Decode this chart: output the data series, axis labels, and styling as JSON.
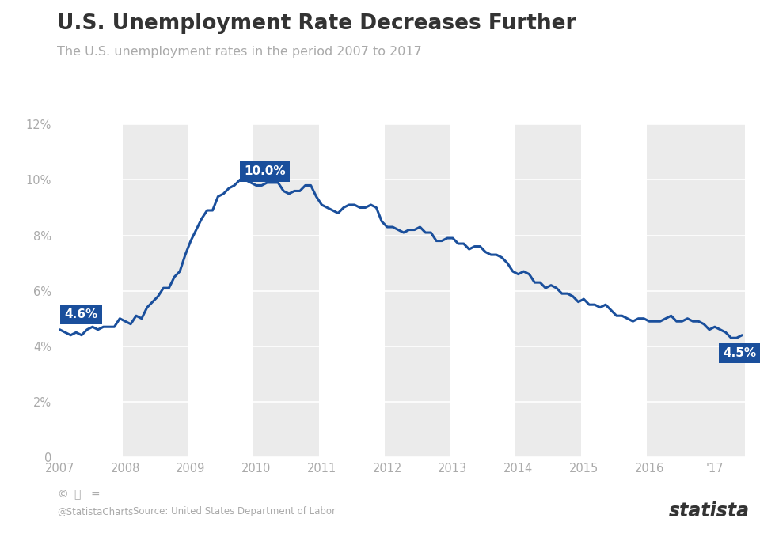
{
  "title": "U.S. Unemployment Rate Decreases Further",
  "subtitle": "The U.S. unemployment rates in the period 2007 to 2017",
  "source": "Source: United States Department of Labor",
  "credit": "@StatistaCharts",
  "background_color": "#ffffff",
  "plot_bg_color": "#ffffff",
  "line_color": "#1a4f9c",
  "line_width": 2.2,
  "title_color": "#333333",
  "subtitle_color": "#aaaaaa",
  "annotation_bg": "#1a4f9c",
  "annotation_text_color": "#ffffff",
  "tick_color": "#aaaaaa",
  "ylim": [
    0,
    12
  ],
  "yticks": [
    0,
    2,
    4,
    6,
    8,
    10,
    12
  ],
  "ytick_labels": [
    "0",
    "2%",
    "4%",
    "6%",
    "8%",
    "10%",
    "12%"
  ],
  "stripe_color": "#ebebeb",
  "data": [
    4.6,
    4.5,
    4.4,
    4.5,
    4.4,
    4.6,
    4.7,
    4.6,
    4.7,
    4.7,
    4.7,
    5.0,
    4.9,
    4.8,
    5.1,
    5.0,
    5.4,
    5.6,
    5.8,
    6.1,
    6.1,
    6.5,
    6.7,
    7.3,
    7.8,
    8.2,
    8.6,
    8.9,
    8.9,
    9.4,
    9.5,
    9.7,
    9.8,
    10.0,
    10.0,
    9.9,
    9.8,
    9.8,
    9.9,
    9.9,
    9.9,
    9.6,
    9.5,
    9.6,
    9.6,
    9.8,
    9.8,
    9.4,
    9.1,
    9.0,
    8.9,
    8.8,
    9.0,
    9.1,
    9.1,
    9.0,
    9.0,
    9.1,
    9.0,
    8.5,
    8.3,
    8.3,
    8.2,
    8.1,
    8.2,
    8.2,
    8.3,
    8.1,
    8.1,
    7.8,
    7.8,
    7.9,
    7.9,
    7.7,
    7.7,
    7.5,
    7.6,
    7.6,
    7.4,
    7.3,
    7.3,
    7.2,
    7.0,
    6.7,
    6.6,
    6.7,
    6.6,
    6.3,
    6.3,
    6.1,
    6.2,
    6.1,
    5.9,
    5.9,
    5.8,
    5.6,
    5.7,
    5.5,
    5.5,
    5.4,
    5.5,
    5.3,
    5.1,
    5.1,
    5.0,
    4.9,
    5.0,
    5.0,
    4.9,
    4.9,
    4.9,
    5.0,
    5.1,
    4.9,
    4.9,
    5.0,
    4.9,
    4.9,
    4.8,
    4.6,
    4.7,
    4.6,
    4.5,
    4.3,
    4.3,
    4.4
  ],
  "x_year_labels": [
    "2007",
    "2008",
    "2009",
    "2010",
    "2011",
    "2012",
    "2013",
    "2014",
    "2015",
    "2016",
    "'17"
  ],
  "x_year_positions": [
    0,
    12,
    24,
    36,
    48,
    60,
    72,
    84,
    96,
    108,
    120
  ]
}
